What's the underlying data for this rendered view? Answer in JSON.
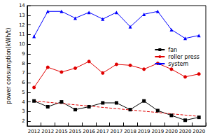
{
  "chart_data": {
    "type": "line",
    "y_label": "power consumption(kWh/t)",
    "categories": [
      "2012",
      "2012",
      "2015",
      "2015",
      "2016",
      "2017",
      "2017",
      "2018",
      "2019",
      "2019",
      "2020",
      "2020",
      "2020"
    ],
    "series": [
      {
        "name": "fan",
        "color": "#000000",
        "marker": "square",
        "values": [
          4.1,
          3.5,
          4.0,
          3.2,
          3.5,
          3.9,
          3.9,
          3.2,
          4.1,
          3.1,
          2.6,
          2.1,
          2.4
        ]
      },
      {
        "name": "roller press",
        "color": "#e00000",
        "marker": "circle",
        "values": [
          5.5,
          7.6,
          7.1,
          7.5,
          8.2,
          7.0,
          7.9,
          7.8,
          7.4,
          8.0,
          7.4,
          6.6,
          6.9
        ]
      },
      {
        "name": "system",
        "color": "#0000ff",
        "marker": "triangle",
        "values": [
          10.8,
          13.4,
          13.4,
          12.7,
          13.3,
          12.6,
          13.3,
          11.8,
          13.1,
          13.4,
          11.5,
          10.6,
          10.9
        ]
      },
      {
        "color": "#e00000",
        "marker": "none",
        "line_style": "dashed",
        "values": [
          4.1,
          null,
          null,
          null,
          null,
          null,
          null,
          null,
          null,
          null,
          null,
          null,
          2.5
        ]
      }
    ],
    "ylim": [
      1.5,
      14
    ],
    "yticks": [
      2,
      3,
      4,
      5,
      6,
      7,
      8,
      9,
      10,
      11,
      12,
      13,
      14
    ],
    "legend": "right",
    "grid": false
  }
}
